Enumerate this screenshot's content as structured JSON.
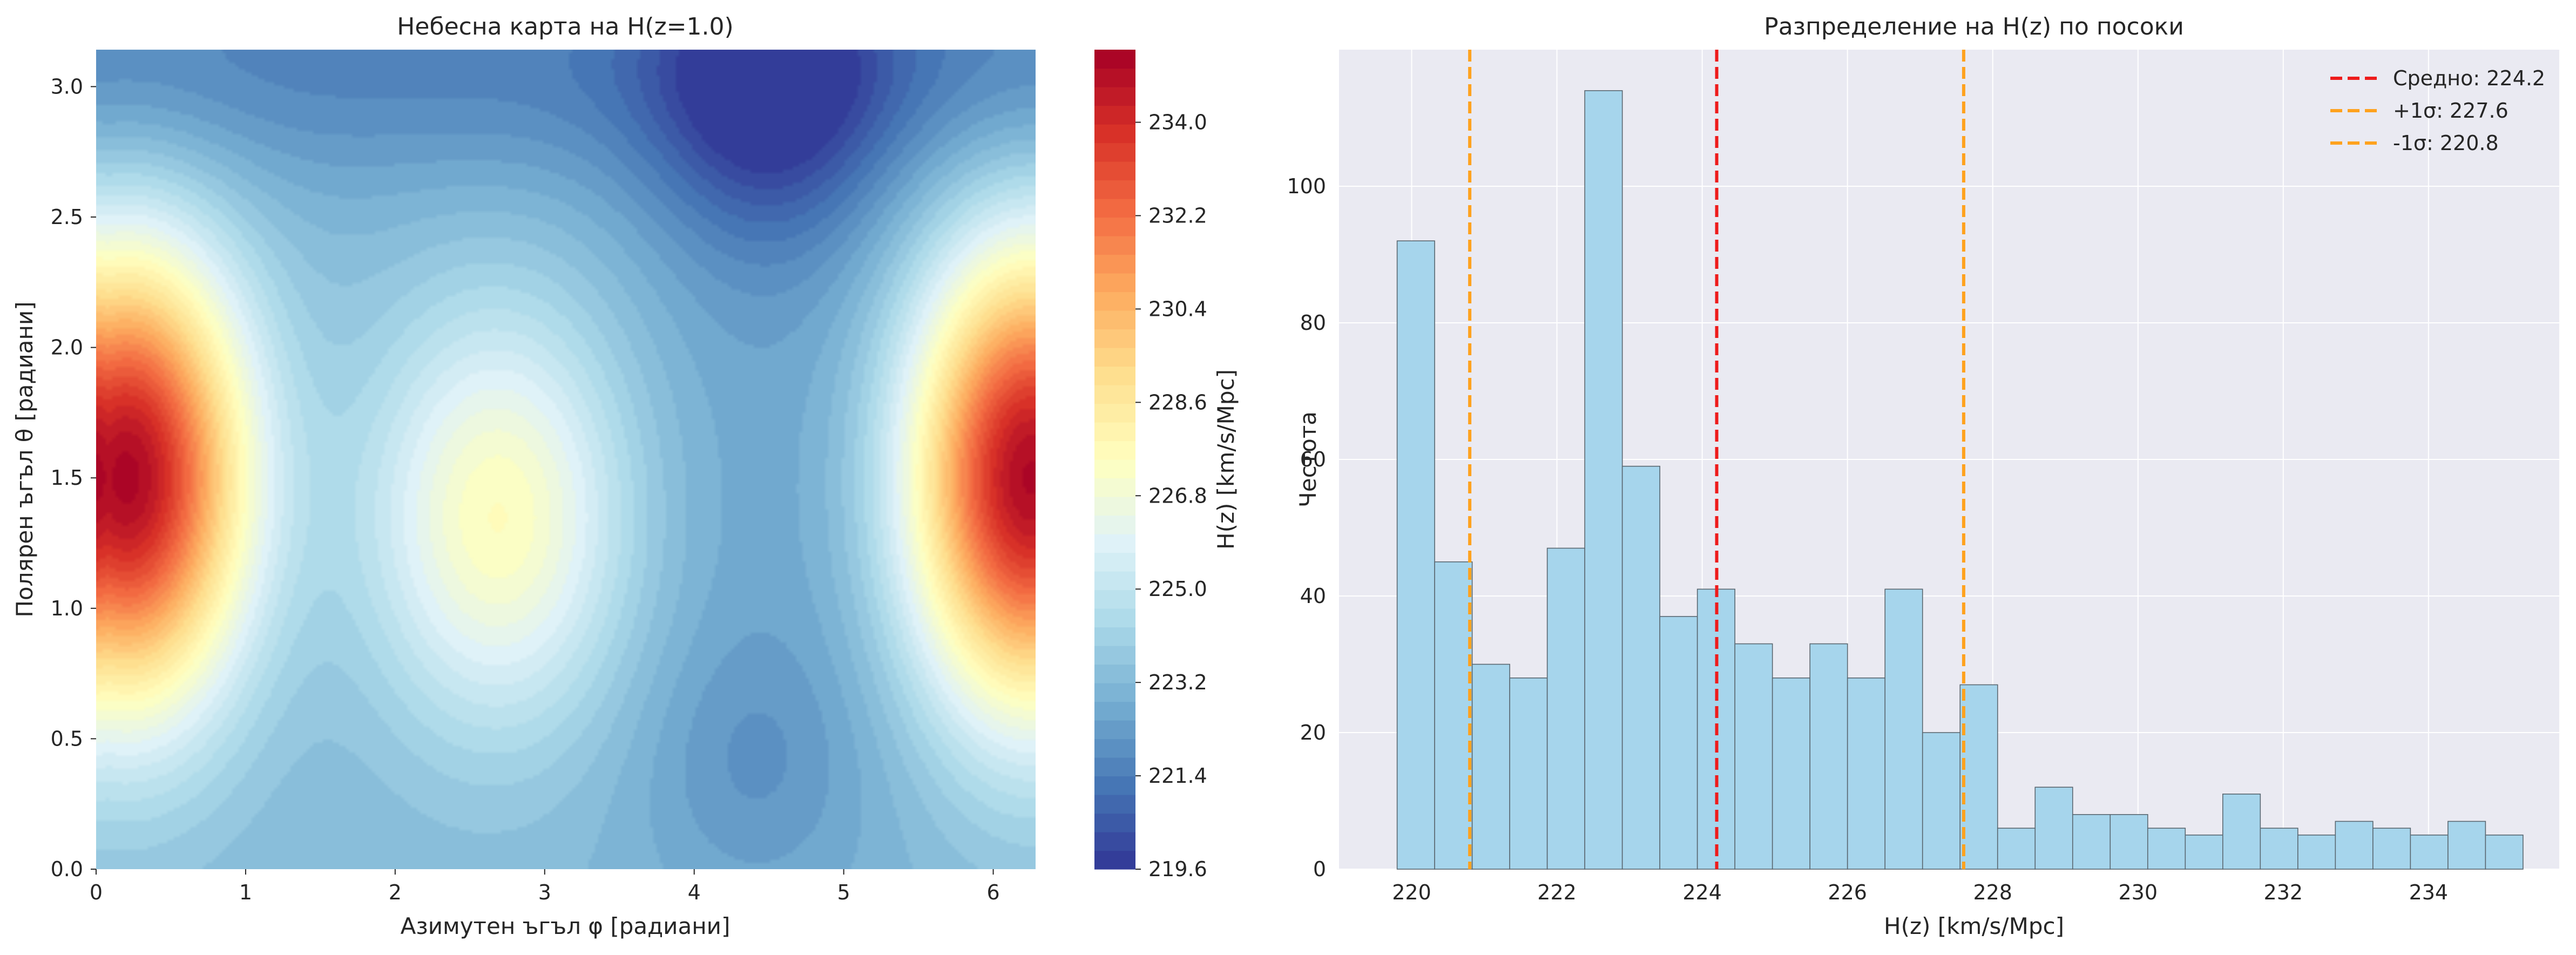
{
  "chart_data": [
    {
      "type": "heatmap",
      "title": "Небесна карта на H(z=1.0)",
      "xlabel": "Азимутен ъгъл φ [радиани]",
      "ylabel": "Полярен ъгъл θ [радиани]",
      "xlim": [
        0,
        6.2832
      ],
      "ylim": [
        0,
        3.1416
      ],
      "xticks": [
        0,
        1,
        2,
        3,
        4,
        5,
        6
      ],
      "xtick_labels": [
        "0",
        "1",
        "2",
        "3",
        "4",
        "5",
        "6"
      ],
      "yticks": [
        0.0,
        0.5,
        1.0,
        1.5,
        2.0,
        2.5,
        3.0
      ],
      "ytick_labels": [
        "0.0",
        "0.5",
        "1.0",
        "1.5",
        "2.0",
        "2.5",
        "3.0"
      ],
      "colorbar": {
        "label": "H(z) [km/s/Mpc]",
        "vmin": 219.6,
        "vmax": 235.4,
        "ticks": [
          219.6,
          221.4,
          223.2,
          225.0,
          226.8,
          228.6,
          230.4,
          232.2,
          234.0
        ],
        "tick_labels": [
          "219.6",
          "221.4",
          "223.2",
          "225.0",
          "226.8",
          "228.6",
          "230.4",
          "232.2",
          "234.0"
        ],
        "colormap": "RdYlBu_r",
        "colors": [
          "#313695",
          "#4575b4",
          "#74add1",
          "#abd9e9",
          "#e0f3f8",
          "#ffffbf",
          "#fee090",
          "#fdae61",
          "#f46d43",
          "#d73027",
          "#a50026"
        ]
      },
      "features": [
        {
          "phi": 0.2,
          "theta": 1.5,
          "value": 235.2
        },
        {
          "phi": 6.25,
          "theta": 1.5,
          "value": 235.2
        },
        {
          "phi": 2.7,
          "theta": 1.35,
          "value": 227.6
        },
        {
          "phi": 4.5,
          "theta": 3.0,
          "value": 220.3
        },
        {
          "phi": 4.4,
          "theta": 0.4,
          "value": 222.4
        }
      ]
    },
    {
      "type": "histogram",
      "title": "Разпределение на H(z) по посоки",
      "xlabel": "H(z) [km/s/Mpc]",
      "ylabel": "Честота",
      "xlim": [
        219.0,
        235.8
      ],
      "ylim": [
        0,
        120
      ],
      "grid": true,
      "xticks": [
        220,
        222,
        224,
        226,
        228,
        230,
        232,
        234
      ],
      "xtick_labels": [
        "220",
        "222",
        "224",
        "226",
        "228",
        "230",
        "232",
        "234"
      ],
      "yticks": [
        0,
        20,
        40,
        60,
        80,
        100
      ],
      "ytick_labels": [
        "0",
        "20",
        "40",
        "60",
        "80",
        "100"
      ],
      "bin_start": 219.8,
      "bin_width": 0.5167,
      "counts": [
        92,
        45,
        30,
        28,
        47,
        114,
        59,
        37,
        41,
        33,
        28,
        33,
        28,
        41,
        20,
        27,
        6,
        12,
        8,
        8,
        6,
        5,
        11,
        6,
        5,
        7,
        6,
        5,
        7,
        5
      ],
      "bar_color": "#a6d5ec",
      "vlines": [
        {
          "x": 224.2,
          "label": "Средно: 224.2",
          "color": "#ee1c1c"
        },
        {
          "x": 227.6,
          "label": "+1σ: 227.6",
          "color": "#ffa21e"
        },
        {
          "x": 220.8,
          "label": "-1σ: 220.8",
          "color": "#ffa21e"
        }
      ],
      "legend_position": "top-right"
    }
  ]
}
